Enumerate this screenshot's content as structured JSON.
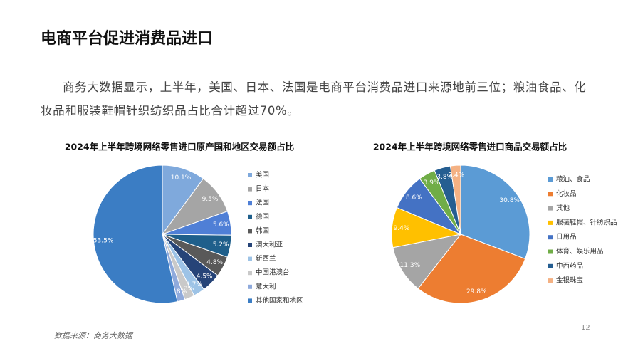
{
  "header": {
    "title": "电商平台促进消费品进口"
  },
  "paragraph": "商务大数据显示，上半年，美国、日本、法国是电商平台消费品进口来源地前三位；粮油食品、化妆品和服装鞋帽针织纺织品占比合计超过70%。",
  "chart_data": [
    {
      "type": "pie",
      "title": "2024年上半年跨境网络零售进口原产国和地区交易额占比",
      "categories": [
        "美国",
        "日本",
        "法国",
        "德国",
        "韩国",
        "澳大利亚",
        "新西兰",
        "中国港澳台",
        "意大利",
        "其他国家和地区"
      ],
      "values": [
        10.1,
        9.5,
        5.6,
        5.2,
        4.8,
        4.5,
        2.7,
        2.3,
        1.8,
        53.5
      ],
      "value_labels": [
        "10.1%",
        "9.5%",
        "5.6%",
        "5.2%",
        "4.8%",
        "4.5%",
        "2.7%",
        "2.3%",
        "1.8%",
        "53.5%"
      ],
      "colors": [
        "#7fa9dc",
        "#a5a5a5",
        "#4f7fd6",
        "#1f5f8b",
        "#595959",
        "#264478",
        "#9dc3e6",
        "#c9c9c9",
        "#8faadc",
        "#3b7dc4"
      ]
    },
    {
      "type": "pie",
      "title": "2024年上半年跨境网络零售进口商品交易额占比",
      "categories": [
        "粮油、食品",
        "化妆品",
        "其他",
        "服装鞋帽、针纺织品",
        "日用品",
        "体育、娱乐用品",
        "中西药品",
        "金银珠宝"
      ],
      "values": [
        30.8,
        29.8,
        11.3,
        9.4,
        8.6,
        3.9,
        3.8,
        2.4
      ],
      "value_labels": [
        "30.8%",
        "29.8%",
        "11.3%",
        "9.4%",
        "8.6%",
        "3.9%",
        "3.8%",
        "2.4%"
      ],
      "colors": [
        "#5b9bd5",
        "#ed7d31",
        "#a5a5a5",
        "#ffc000",
        "#4472c4",
        "#70ad47",
        "#255e91",
        "#f4b183"
      ]
    }
  ],
  "source": "数据来源：商务大数据",
  "page_number": "12"
}
